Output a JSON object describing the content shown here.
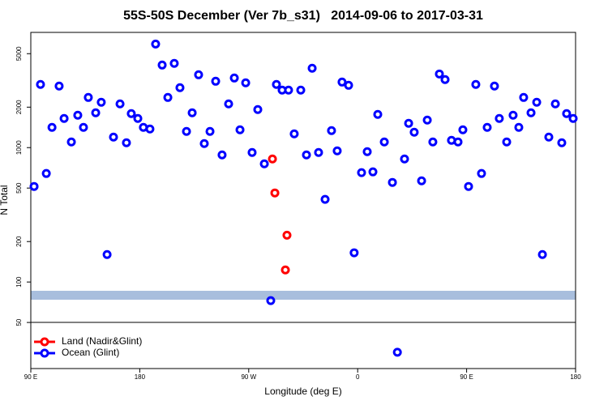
{
  "chart_data": {
    "type": "scatter",
    "title": "55S-50S December (Ver 7b_s31)   2014-09-06 to 2017-03-31",
    "xlabel": "Longitude (deg E)",
    "ylabel": "N Total",
    "xlim": [
      90,
      540
    ],
    "ylim": [
      22.7,
      7200
    ],
    "yscale": "log",
    "xticks": [
      {
        "value": 90,
        "label": "90 E"
      },
      180,
      {
        "value": 270,
        "label": "90 W"
      },
      {
        "value": 360,
        "label": "0"
      },
      {
        "value": 450,
        "label": "90 E"
      },
      {
        "value": 540,
        "label": "180"
      }
    ],
    "yticks": [
      50,
      100,
      200,
      500,
      1000,
      2000,
      5000
    ],
    "legend": "bottom-left",
    "series": [
      {
        "name": "Land (Nadir&Glint)",
        "color": "#ff0000",
        "x": [
          289.6,
          291.6,
          301.6,
          300.3
        ],
        "values": [
          823,
          460,
          223,
          123
        ]
      },
      {
        "name": "Ocean (Glint)",
        "color": "#0000ff",
        "x": [
          92.7,
          98,
          102.8,
          107.5,
          113.4,
          117.5,
          123.5,
          128.8,
          133.5,
          137.5,
          143.6,
          148.2,
          153,
          158.3,
          163.7,
          169,
          173,
          178.4,
          183,
          188.4,
          193.1,
          198.5,
          203.2,
          208.5,
          213.2,
          218.6,
          223.3,
          228.6,
          233.3,
          238,
          242.7,
          248,
          253.4,
          258.1,
          262.8,
          267.5,
          272.8,
          277.5,
          282.9,
          288.2,
          292.9,
          297.6,
          302.9,
          307.6,
          313,
          317.7,
          322.4,
          327.7,
          333.1,
          338.4,
          343.1,
          347.1,
          352.5,
          357.1,
          363.2,
          367.9,
          372.6,
          376.6,
          382,
          388.7,
          392.8,
          398.7,
          402.1,
          406.7,
          412.8,
          417.5,
          422.1,
          427.5,
          432.2,
          437.5,
          442.9,
          446.9,
          451.6,
          457.6,
          462.3,
          467,
          473,
          477,
          483.1,
          488.4,
          493.1,
          497.1,
          503.2,
          507.9,
          512.6,
          517.9,
          523.3,
          528.6,
          532.6,
          538
        ],
        "values": [
          514,
          2951,
          642,
          1415,
          2871,
          1648,
          1102,
          1741,
          1415,
          2362,
          1815,
          2175,
          160,
          1198,
          2115,
          1087,
          1790,
          1648,
          1415,
          1375,
          5900,
          4115,
          2362,
          4235,
          2791,
          1320,
          1815,
          3484,
          1072,
          1320,
          3118,
          883,
          2115,
          3296,
          1357,
          3033,
          920,
          1919,
          758,
          72.7,
          2951,
          2677,
          2677,
          1266,
          2677,
          883,
          3894,
          920,
          412,
          1339,
          946,
          3075,
          2909,
          165,
          651,
          933,
          660,
          1766,
          1102,
          551,
          30,
          823,
          1516,
          1302,
          566,
          1603,
          1102,
          3532,
          3207,
          1133,
          1102,
          1357,
          514,
          2951,
          642,
          1415,
          2871,
          1648,
          1102,
          1741,
          1415,
          2362,
          1815,
          2175,
          160,
          1198,
          2115,
          1087,
          1790,
          1648
        ]
      }
    ]
  }
}
